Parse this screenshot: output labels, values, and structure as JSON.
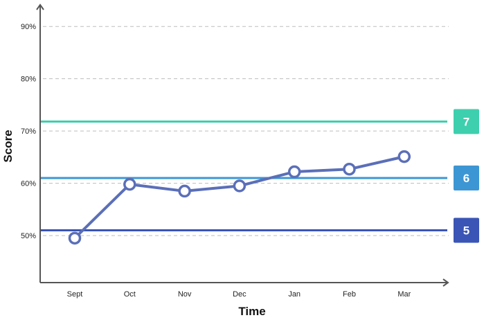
{
  "chart_data": {
    "type": "line",
    "xlabel": "Time",
    "ylabel": "Score",
    "categories": [
      "Sept",
      "Oct",
      "Nov",
      "Dec",
      "Jan",
      "Feb",
      "Mar"
    ],
    "y_ticks": [
      "50%",
      "60%",
      "70%",
      "80%",
      "90%"
    ],
    "y_tick_values": [
      50,
      60,
      70,
      80,
      90
    ],
    "ylim": [
      41,
      94
    ],
    "grid": true,
    "series": [
      {
        "values": [
          49.5,
          59.8,
          58.5,
          59.5,
          62.2,
          62.7,
          65.1
        ],
        "color": "#5b6fb8"
      }
    ],
    "reference_lines": [
      {
        "label": "7",
        "value": 71.8,
        "color": "#3ecfae"
      },
      {
        "label": "6",
        "value": 61.0,
        "color": "#3d96d4"
      },
      {
        "label": "5",
        "value": 51.0,
        "color": "#3a55b5"
      }
    ]
  }
}
